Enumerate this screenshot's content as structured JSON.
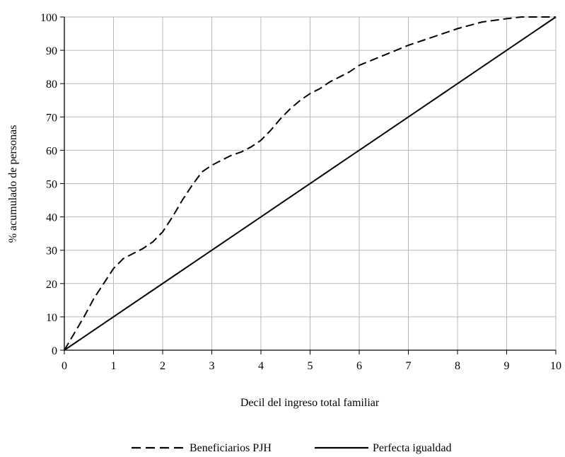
{
  "chart_data": {
    "type": "line",
    "title": "",
    "xlabel": "Decil del ingreso total familiar",
    "ylabel": "% acumulado de personas",
    "xlim": [
      0,
      10
    ],
    "ylim": [
      0,
      100
    ],
    "x_ticks": [
      0,
      1,
      2,
      3,
      4,
      5,
      6,
      7,
      8,
      9,
      10
    ],
    "y_ticks": [
      0,
      10,
      20,
      30,
      40,
      50,
      60,
      70,
      80,
      90,
      100
    ],
    "grid": true,
    "legend_position": "bottom",
    "series": [
      {
        "name": "Beneficiarios PJH",
        "style": "dashed",
        "color": "#000000",
        "x": [
          0,
          0.2,
          0.4,
          0.6,
          0.8,
          1.0,
          1.2,
          1.4,
          1.6,
          1.8,
          2.0,
          2.2,
          2.4,
          2.6,
          2.8,
          3.0,
          3.2,
          3.4,
          3.6,
          3.8,
          4.0,
          4.2,
          4.4,
          4.6,
          4.8,
          5.0,
          5.2,
          5.4,
          5.6,
          5.8,
          6.0,
          6.5,
          7.0,
          7.5,
          8.0,
          8.5,
          9.0,
          9.3,
          9.6,
          10.0
        ],
        "y": [
          0,
          5,
          10,
          15.5,
          20,
          24.5,
          27.5,
          29,
          30.5,
          32.5,
          35.5,
          40,
          45,
          49.5,
          53.5,
          55.5,
          57,
          58.5,
          59.5,
          61,
          63,
          66,
          69.5,
          72.5,
          75,
          77,
          78.5,
          80.5,
          82,
          83.5,
          85.5,
          88.5,
          91.5,
          94,
          96.5,
          98.5,
          99.5,
          100,
          100,
          100
        ]
      },
      {
        "name": "Perfecta igualdad",
        "style": "solid",
        "color": "#000000",
        "x": [
          0,
          10
        ],
        "y": [
          0,
          100
        ]
      }
    ]
  }
}
